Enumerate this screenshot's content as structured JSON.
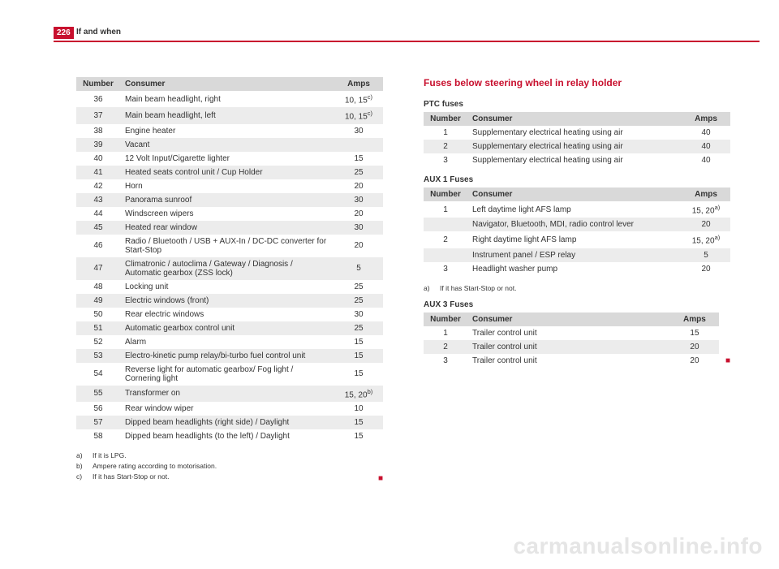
{
  "page_number": "226",
  "page_title": "If and when",
  "watermark": "carmanualsonline.info",
  "left_table": {
    "headers": {
      "number": "Number",
      "consumer": "Consumer",
      "amps": "Amps"
    },
    "rows": [
      {
        "num": "36",
        "cons": "Main beam headlight, right",
        "amps": "10, 15",
        "sup": "c)"
      },
      {
        "num": "37",
        "cons": "Main beam headlight, left",
        "amps": "10, 15",
        "sup": "c)"
      },
      {
        "num": "38",
        "cons": "Engine heater",
        "amps": "30"
      },
      {
        "num": "39",
        "cons": "Vacant",
        "amps": ""
      },
      {
        "num": "40",
        "cons": "12 Volt Input/Cigarette lighter",
        "amps": "15"
      },
      {
        "num": "41",
        "cons": "Heated seats control unit / Cup Holder",
        "amps": "25"
      },
      {
        "num": "42",
        "cons": "Horn",
        "amps": "20"
      },
      {
        "num": "43",
        "cons": "Panorama sunroof",
        "amps": "30"
      },
      {
        "num": "44",
        "cons": "Windscreen wipers",
        "amps": "20"
      },
      {
        "num": "45",
        "cons": "Heated rear window",
        "amps": "30"
      },
      {
        "num": "46",
        "cons": "Radio / Bluetooth / USB + AUX-In / DC-DC converter for Start-Stop",
        "amps": "20"
      },
      {
        "num": "47",
        "cons": "Climatronic / autoclima / Gateway / Diagnosis / Automatic gearbox (ZSS lock)",
        "amps": "5"
      },
      {
        "num": "48",
        "cons": "Locking unit",
        "amps": "25"
      },
      {
        "num": "49",
        "cons": "Electric windows (front)",
        "amps": "25"
      },
      {
        "num": "50",
        "cons": "Rear electric windows",
        "amps": "30"
      },
      {
        "num": "51",
        "cons": "Automatic gearbox control unit",
        "amps": "25"
      },
      {
        "num": "52",
        "cons": "Alarm",
        "amps": "15"
      },
      {
        "num": "53",
        "cons": "Electro-kinetic pump relay/bi-turbo fuel control unit",
        "amps": "15"
      },
      {
        "num": "54",
        "cons": "Reverse light for automatic gearbox/ Fog light / Cornering light",
        "amps": "15"
      },
      {
        "num": "55",
        "cons": "Transformer on",
        "amps": "15, 20",
        "sup": "b)"
      },
      {
        "num": "56",
        "cons": "Rear window wiper",
        "amps": "10"
      },
      {
        "num": "57",
        "cons": "Dipped beam headlights (right side) / Daylight",
        "amps": "15"
      },
      {
        "num": "58",
        "cons": "Dipped beam headlights (to the left) / Daylight",
        "amps": "15"
      }
    ],
    "footnotes": [
      {
        "lbl": "a)",
        "txt": "If it is LPG."
      },
      {
        "lbl": "b)",
        "txt": "Ampere rating according to motorisation."
      },
      {
        "lbl": "c)",
        "txt": "If it has Start-Stop or not."
      }
    ]
  },
  "right": {
    "section_title": "Fuses below steering wheel in relay holder",
    "ptc": {
      "title": "PTC fuses",
      "headers": {
        "number": "Number",
        "consumer": "Consumer",
        "amps": "Amps"
      },
      "rows": [
        {
          "num": "1",
          "cons": "Supplementary electrical heating using air",
          "amps": "40"
        },
        {
          "num": "2",
          "cons": "Supplementary electrical heating using air",
          "amps": "40"
        },
        {
          "num": "3",
          "cons": "Supplementary electrical heating using air",
          "amps": "40"
        }
      ]
    },
    "aux1": {
      "title": "AUX 1 Fuses",
      "headers": {
        "number": "Number",
        "consumer": "Consumer",
        "amps": "Amps"
      },
      "rows": [
        {
          "num": "1",
          "cons": "Left daytime light AFS lamp",
          "amps": "15, 20",
          "sup": "a)"
        },
        {
          "num": "",
          "cons": "Navigator, Bluetooth, MDI, radio control lever",
          "amps": "20"
        },
        {
          "num": "2",
          "cons": "Right daytime light AFS lamp",
          "amps": "15, 20",
          "sup": "a)"
        },
        {
          "num": "",
          "cons": "Instrument panel / ESP relay",
          "amps": "5"
        },
        {
          "num": "3",
          "cons": "Headlight washer pump",
          "amps": "20"
        }
      ],
      "footnotes": [
        {
          "lbl": "a)",
          "txt": "If it has Start-Stop or not."
        }
      ]
    },
    "aux3": {
      "title": "AUX 3 Fuses",
      "headers": {
        "number": "Number",
        "consumer": "Consumer",
        "amps": "Amps"
      },
      "rows": [
        {
          "num": "1",
          "cons": "Trailer control unit",
          "amps": "15"
        },
        {
          "num": "2",
          "cons": "Trailer control unit",
          "amps": "20"
        },
        {
          "num": "3",
          "cons": "Trailer control unit",
          "amps": "20"
        }
      ]
    }
  },
  "colors": {
    "accent": "#c8102e",
    "row_grey": "#ececec",
    "header_grey": "#d9d9d9"
  }
}
